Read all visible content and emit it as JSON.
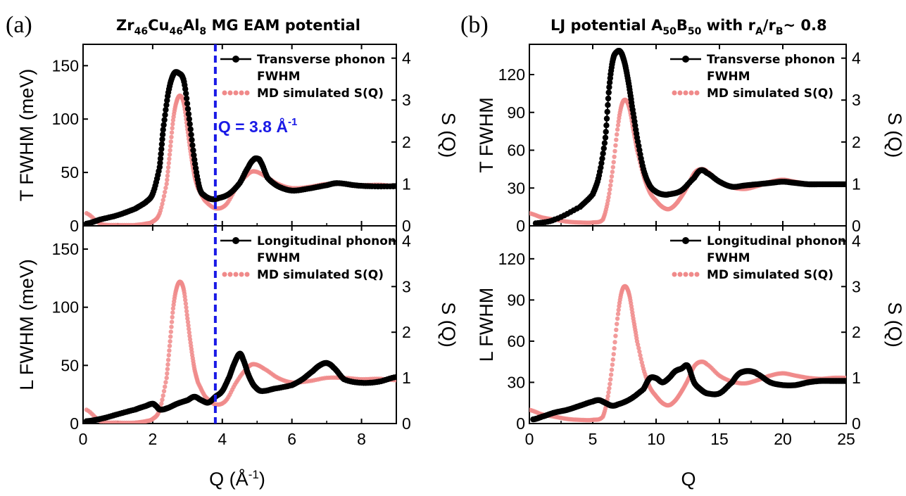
{
  "figure": {
    "panel_a_label": "(a)",
    "panel_b_label": "(b)",
    "panel_a_title": {
      "p1": "Zr",
      "s1": "46",
      "p2": "Cu",
      "s2": "46",
      "p3": "Al",
      "s3": "8",
      "p4": " MG EAM potential"
    },
    "panel_b_title": {
      "p1": "LJ potential A",
      "s1": "50",
      "p2": "B",
      "s2": "50",
      "p3": " with r",
      "s3": "A",
      "p4": "/r",
      "s4": "B",
      "p5": "~ 0.8"
    }
  },
  "colors": {
    "phonon": "#000000",
    "sq": "#f05a5a",
    "sq_light": "#f08a8a",
    "marker_line": "#1a1ae6"
  },
  "chart_data": [
    {
      "id": "a-top",
      "type": "scatter",
      "ylabel": "T FWHM (meV)",
      "y2label": "S (Q)",
      "xlim": [
        0,
        9
      ],
      "ylim": [
        0,
        170
      ],
      "y2lim": [
        0,
        4.33
      ],
      "xticks": [
        0,
        2,
        4,
        6,
        8
      ],
      "yticks": [
        0,
        50,
        100,
        150
      ],
      "y2ticks": [
        0,
        1,
        2,
        3,
        4
      ],
      "legend_position": "top-right",
      "legend": [
        "Transverse phonon",
        "FWHM",
        "MD simulated S(Q)"
      ],
      "vline": {
        "x": 3.8,
        "label_main": "Q = 3.8 Å",
        "label_sup": "-1"
      },
      "series": [
        {
          "name": "Transverse phonon FWHM",
          "axis": "left",
          "style": "phonon",
          "x": [
            0.1,
            0.5,
            1.0,
            1.5,
            1.8,
            2.0,
            2.2,
            2.3,
            2.45,
            2.6,
            2.75,
            2.9,
            3.05,
            3.2,
            3.35,
            3.5,
            3.7,
            3.9,
            4.2,
            4.5,
            4.75,
            4.9,
            5.0,
            5.1,
            5.3,
            5.6,
            6.0,
            6.5,
            7.0,
            7.3,
            7.8,
            8.3,
            9.0
          ],
          "y": [
            2,
            6,
            10,
            16,
            22,
            30,
            55,
            90,
            125,
            142,
            143,
            135,
            100,
            62,
            35,
            28,
            25,
            26,
            30,
            40,
            55,
            62,
            63,
            60,
            45,
            37,
            33,
            35,
            38,
            40,
            38,
            37,
            37
          ]
        },
        {
          "name": "MD simulated S(Q)",
          "axis": "right",
          "style": "sq",
          "x": [
            0.1,
            0.5,
            1.0,
            1.5,
            1.8,
            2.0,
            2.2,
            2.4,
            2.5,
            2.6,
            2.7,
            2.8,
            2.9,
            3.0,
            3.1,
            3.2,
            3.3,
            3.5,
            3.8,
            4.1,
            4.4,
            4.7,
            4.9,
            5.2,
            5.6,
            6.0,
            6.5,
            7.0,
            7.5,
            8.0,
            8.5,
            9.0
          ],
          "y": [
            0.3,
            0.05,
            0.02,
            0.02,
            0.05,
            0.1,
            0.3,
            1.0,
            1.8,
            2.6,
            3.0,
            3.1,
            2.9,
            2.3,
            1.7,
            1.2,
            0.9,
            0.6,
            0.42,
            0.5,
            0.9,
            1.2,
            1.3,
            1.2,
            1.0,
            0.9,
            0.93,
            1.0,
            1.0,
            0.97,
            0.98,
            0.95
          ]
        }
      ]
    },
    {
      "id": "a-bottom",
      "type": "scatter",
      "xlabel_main": "Q (Å",
      "xlabel_sup": "-1",
      "xlabel_end": ")",
      "ylabel": "L FWHM (meV)",
      "y2label": "S (Q)",
      "xlim": [
        0,
        9
      ],
      "ylim": [
        0,
        170
      ],
      "y2lim": [
        0,
        4.33
      ],
      "xticks": [
        0,
        2,
        4,
        6,
        8
      ],
      "yticks": [
        0,
        50,
        100,
        150
      ],
      "y2ticks": [
        0,
        1,
        2,
        3,
        4
      ],
      "legend_position": "top-right",
      "legend": [
        "Longitudinal phonon",
        "FWHM",
        "MD simulated S(Q)"
      ],
      "vline": {
        "x": 3.8
      },
      "series": [
        {
          "name": "Longitudinal phonon FWHM",
          "axis": "left",
          "style": "phonon",
          "x": [
            0.1,
            0.5,
            1.0,
            1.5,
            1.8,
            2.0,
            2.1,
            2.2,
            2.4,
            2.7,
            3.0,
            3.2,
            3.4,
            3.6,
            3.8,
            4.0,
            4.2,
            4.35,
            4.5,
            4.6,
            4.75,
            4.9,
            5.1,
            5.5,
            6.0,
            6.3,
            6.6,
            6.8,
            7.0,
            7.2,
            7.5,
            8.0,
            8.5,
            9.0
          ],
          "y": [
            2,
            4,
            8,
            12,
            15,
            17,
            15,
            12,
            13,
            17,
            20,
            23,
            20,
            18,
            23,
            28,
            40,
            52,
            60,
            55,
            42,
            33,
            28,
            30,
            33,
            38,
            45,
            50,
            52,
            48,
            38,
            35,
            36,
            40
          ]
        },
        {
          "name": "MD simulated S(Q)",
          "axis": "right",
          "style": "sq",
          "x": [
            0.1,
            0.5,
            1.0,
            1.5,
            1.8,
            2.0,
            2.2,
            2.4,
            2.5,
            2.6,
            2.7,
            2.8,
            2.9,
            3.0,
            3.1,
            3.2,
            3.3,
            3.5,
            3.8,
            4.1,
            4.4,
            4.7,
            4.9,
            5.2,
            5.6,
            6.0,
            6.5,
            7.0,
            7.5,
            8.0,
            8.5,
            9.0
          ],
          "y": [
            0.3,
            0.05,
            0.02,
            0.02,
            0.05,
            0.1,
            0.3,
            1.0,
            1.8,
            2.6,
            3.0,
            3.1,
            2.9,
            2.3,
            1.7,
            1.2,
            0.9,
            0.6,
            0.42,
            0.5,
            0.9,
            1.2,
            1.3,
            1.2,
            1.0,
            0.9,
            0.93,
            1.0,
            1.0,
            0.97,
            0.98,
            0.95
          ]
        }
      ]
    },
    {
      "id": "b-top",
      "type": "scatter",
      "ylabel": "T FWHM",
      "y2label": "S (Q)",
      "xlim": [
        0,
        25
      ],
      "ylim": [
        0,
        144
      ],
      "y2lim": [
        0,
        4.33
      ],
      "xticks": [
        0,
        5,
        10,
        15,
        20,
        25
      ],
      "yticks": [
        0,
        30,
        60,
        90,
        120
      ],
      "y2ticks": [
        0,
        1,
        2,
        3,
        4
      ],
      "legend_position": "top-right",
      "legend": [
        "Transverse phonon",
        "FWHM",
        "MD simulated S(Q)"
      ],
      "series": [
        {
          "name": "Transverse phonon FWHM",
          "axis": "left",
          "style": "phonon",
          "x": [
            0.5,
            2,
            4,
            5,
            5.5,
            6,
            6.3,
            6.6,
            6.9,
            7.2,
            7.5,
            7.8,
            8.1,
            8.5,
            9,
            9.5,
            10,
            10.5,
            11,
            12,
            13,
            13.5,
            14,
            15,
            16,
            17,
            18,
            19,
            20,
            21,
            22,
            23,
            24,
            25
          ],
          "y": [
            2,
            5,
            15,
            25,
            40,
            70,
            110,
            132,
            138,
            138,
            130,
            115,
            95,
            70,
            45,
            32,
            27,
            25,
            25,
            28,
            38,
            44,
            42,
            35,
            31,
            32,
            33,
            34,
            35,
            34,
            33,
            33,
            33,
            33
          ]
        },
        {
          "name": "MD simulated S(Q)",
          "axis": "right",
          "style": "sq",
          "x": [
            0,
            1,
            2,
            3,
            4,
            5,
            5.8,
            6.2,
            6.6,
            7.0,
            7.3,
            7.6,
            7.9,
            8.2,
            8.5,
            9,
            9.5,
            10,
            10.5,
            11,
            11.5,
            12,
            12.5,
            13,
            13.5,
            14,
            15,
            16,
            17,
            18,
            19,
            20,
            21,
            22,
            23,
            24,
            25
          ],
          "y": [
            0.3,
            0.2,
            0.15,
            0.1,
            0.08,
            0.08,
            0.15,
            0.6,
            1.4,
            2.4,
            2.9,
            3.0,
            2.8,
            2.3,
            1.8,
            1.2,
            0.8,
            0.6,
            0.45,
            0.4,
            0.5,
            0.7,
            0.95,
            1.25,
            1.35,
            1.3,
            1.05,
            0.92,
            0.88,
            0.95,
            1.05,
            1.1,
            1.05,
            1.0,
            0.98,
            1.0,
            1.0
          ]
        }
      ]
    },
    {
      "id": "b-bottom",
      "type": "scatter",
      "xlabel": "Q",
      "ylabel": "L FWHM",
      "y2label": "S (Q)",
      "xlim": [
        0,
        25
      ],
      "ylim": [
        0,
        144
      ],
      "y2lim": [
        0,
        4.33
      ],
      "xticks": [
        0,
        5,
        10,
        15,
        20,
        25
      ],
      "yticks": [
        0,
        30,
        60,
        90,
        120
      ],
      "y2ticks": [
        0,
        1,
        2,
        3,
        4
      ],
      "legend_position": "top-right",
      "legend": [
        "Longitudinal phonon",
        "FWHM",
        "MD simulated S(Q)"
      ],
      "series": [
        {
          "name": "Longitudinal phonon FWHM",
          "axis": "left",
          "style": "phonon",
          "x": [
            0.3,
            1,
            2,
            3,
            4,
            5,
            5.5,
            6,
            6.5,
            7,
            8,
            9,
            9.5,
            10,
            10.5,
            11,
            11.5,
            12,
            12.5,
            13,
            13.5,
            14,
            15,
            16,
            16.5,
            17,
            17.5,
            18,
            19,
            20,
            21,
            22,
            23,
            24,
            25
          ],
          "y": [
            3,
            5,
            8,
            10,
            13,
            16,
            17,
            15,
            13,
            14,
            18,
            25,
            33,
            33,
            30,
            33,
            38,
            40,
            42,
            30,
            25,
            22,
            22,
            30,
            36,
            38,
            38,
            36,
            30,
            28,
            28,
            30,
            31,
            31,
            31
          ]
        },
        {
          "name": "MD simulated S(Q)",
          "axis": "right",
          "style": "sq",
          "x": [
            0,
            1,
            2,
            3,
            4,
            5,
            5.8,
            6.2,
            6.6,
            7.0,
            7.3,
            7.6,
            7.9,
            8.2,
            8.5,
            9,
            9.5,
            10,
            10.5,
            11,
            11.5,
            12,
            12.5,
            13,
            13.5,
            14,
            15,
            16,
            17,
            18,
            19,
            20,
            21,
            22,
            23,
            24,
            25
          ],
          "y": [
            0.3,
            0.2,
            0.15,
            0.1,
            0.08,
            0.08,
            0.15,
            0.6,
            1.4,
            2.4,
            2.9,
            3.0,
            2.8,
            2.3,
            1.8,
            1.2,
            0.8,
            0.6,
            0.45,
            0.4,
            0.5,
            0.7,
            0.95,
            1.25,
            1.35,
            1.3,
            1.05,
            0.92,
            0.88,
            0.95,
            1.05,
            1.1,
            1.05,
            1.0,
            0.98,
            1.0,
            1.0
          ]
        }
      ]
    }
  ]
}
